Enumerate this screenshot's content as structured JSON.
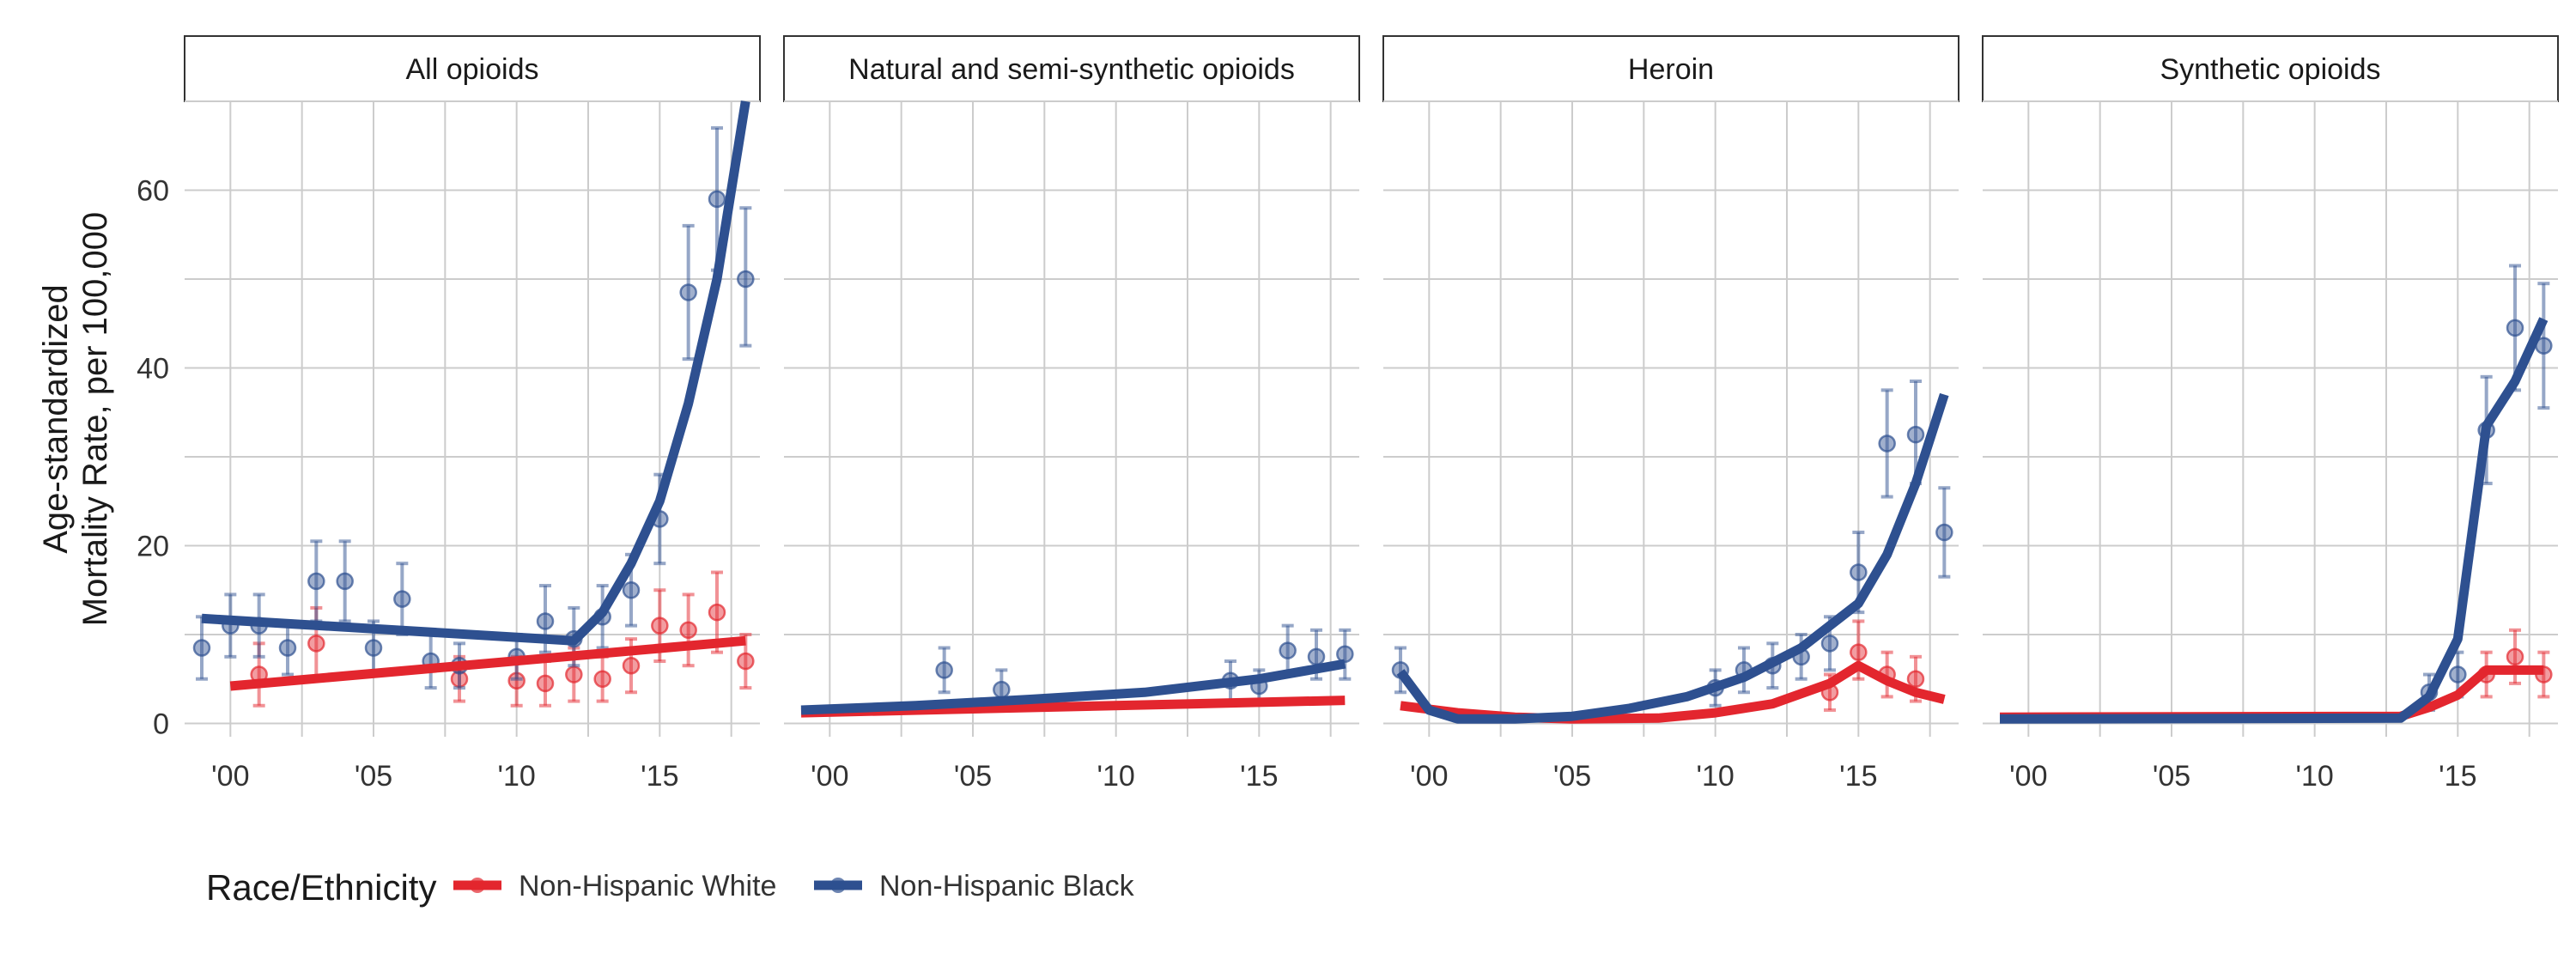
{
  "colors": {
    "white_series": "#E3262E",
    "black_series": "#2E5090",
    "grid": "#cccccc"
  },
  "chart_data": {
    "type": "line",
    "ylabel": "Age-standardized\nMortality Rate, per 100,000",
    "ylim": [
      0,
      70
    ],
    "xlim": [
      1999,
      2018
    ],
    "yticks": [
      0,
      20,
      40,
      60
    ],
    "xticks": [
      2000,
      2005,
      2010,
      2015
    ],
    "xtick_labels": [
      "'00",
      "'05",
      "'10",
      "'15"
    ],
    "grid": true,
    "legend": {
      "title": "Race/Ethnicity",
      "placement": "bottom-left",
      "entries": [
        "Non-Hispanic White",
        "Non-Hispanic Black"
      ]
    },
    "panels": [
      {
        "title": "All opioids",
        "series": [
          {
            "name": "Non-Hispanic White",
            "key": "white",
            "fit": [
              [
                2000,
                4.2
              ],
              [
                2018,
                9.3
              ]
            ],
            "points": [
              [
                2001,
                5.5,
                2.0,
                9.0
              ],
              [
                2003,
                9.0,
                5.0,
                13.0
              ],
              [
                2008,
                5.0,
                2.5,
                7.5
              ],
              [
                2010,
                4.8,
                2.0,
                7.5
              ],
              [
                2011,
                4.5,
                2.0,
                7.0
              ],
              [
                2012,
                5.5,
                2.5,
                8.5
              ],
              [
                2013,
                5.0,
                2.5,
                7.5
              ],
              [
                2014,
                6.5,
                3.5,
                9.5
              ],
              [
                2015,
                11.0,
                7.0,
                15.0
              ],
              [
                2016,
                10.5,
                6.5,
                14.5
              ],
              [
                2017,
                12.5,
                8.0,
                17.0
              ],
              [
                2018,
                7.0,
                4.0,
                10.0
              ]
            ]
          },
          {
            "name": "Non-Hispanic Black",
            "key": "black",
            "fit": [
              [
                1999,
                11.8
              ],
              [
                2012,
                9.3
              ],
              [
                2013,
                12.5
              ],
              [
                2014,
                18.0
              ],
              [
                2015,
                25.0
              ],
              [
                2016,
                36.0
              ],
              [
                2017,
                50.0
              ],
              [
                2018,
                70.0
              ]
            ],
            "points": [
              [
                1999,
                8.5,
                5.0,
                12.0
              ],
              [
                2000,
                11.0,
                7.5,
                14.5
              ],
              [
                2001,
                11.0,
                7.5,
                14.5
              ],
              [
                2002,
                8.5,
                5.5,
                11.5
              ],
              [
                2003,
                16.0,
                11.5,
                20.5
              ],
              [
                2004,
                16.0,
                11.5,
                20.5
              ],
              [
                2005,
                8.5,
                5.5,
                11.5
              ],
              [
                2006,
                14.0,
                10.0,
                18.0
              ],
              [
                2007,
                7.0,
                4.0,
                10.0
              ],
              [
                2008,
                6.5,
                4.0,
                9.0
              ],
              [
                2010,
                7.5,
                5.0,
                10.0
              ],
              [
                2011,
                11.5,
                8.0,
                15.5
              ],
              [
                2012,
                9.5,
                6.5,
                13.0
              ],
              [
                2013,
                12.0,
                8.5,
                15.5
              ],
              [
                2014,
                15.0,
                11.0,
                19.0
              ],
              [
                2015,
                23.0,
                18.0,
                28.0
              ],
              [
                2016,
                48.5,
                41.0,
                56.0
              ],
              [
                2017,
                59.0,
                51.0,
                67.0
              ],
              [
                2018,
                50.0,
                42.5,
                58.0
              ]
            ]
          }
        ]
      },
      {
        "title": "Natural and semi-synthetic opioids",
        "series": [
          {
            "name": "Non-Hispanic White",
            "key": "white",
            "fit": [
              [
                1999,
                1.2
              ],
              [
                2018,
                2.6
              ]
            ],
            "points": []
          },
          {
            "name": "Non-Hispanic Black",
            "key": "black",
            "fit": [
              [
                1999,
                1.5
              ],
              [
                2003,
                2.0
              ],
              [
                2007,
                2.7
              ],
              [
                2011,
                3.5
              ],
              [
                2015,
                5.0
              ],
              [
                2018,
                6.7
              ]
            ],
            "points": [
              [
                2004,
                6.0,
                3.5,
                8.5
              ],
              [
                2006,
                3.8,
                2.0,
                6.0
              ],
              [
                2014,
                4.8,
                2.5,
                7.0
              ],
              [
                2015,
                4.2,
                2.5,
                6.0
              ],
              [
                2016,
                8.2,
                5.5,
                11.0
              ],
              [
                2017,
                7.5,
                5.0,
                10.5
              ],
              [
                2018,
                7.8,
                5.0,
                10.5
              ]
            ]
          }
        ]
      },
      {
        "title": "Heroin",
        "series": [
          {
            "name": "Non-Hispanic White",
            "key": "white",
            "fit": [
              [
                1999,
                2.0
              ],
              [
                2001,
                1.2
              ],
              [
                2003,
                0.7
              ],
              [
                2005,
                0.5
              ],
              [
                2008,
                0.6
              ],
              [
                2010,
                1.2
              ],
              [
                2012,
                2.2
              ],
              [
                2014,
                4.5
              ],
              [
                2015,
                6.5
              ],
              [
                2016,
                4.8
              ],
              [
                2017,
                3.5
              ],
              [
                2018,
                2.7
              ]
            ],
            "points": [
              [
                2014,
                3.5,
                1.5,
                5.5
              ],
              [
                2015,
                8.0,
                5.0,
                11.5
              ],
              [
                2016,
                5.5,
                3.0,
                8.0
              ],
              [
                2017,
                5.0,
                2.5,
                7.5
              ]
            ]
          },
          {
            "name": "Non-Hispanic Black",
            "key": "black",
            "fit": [
              [
                1999,
                5.8
              ],
              [
                2000,
                1.5
              ],
              [
                2001,
                0.5
              ],
              [
                2003,
                0.5
              ],
              [
                2005,
                0.8
              ],
              [
                2007,
                1.7
              ],
              [
                2009,
                3.0
              ],
              [
                2011,
                5.2
              ],
              [
                2013,
                8.5
              ],
              [
                2015,
                13.5
              ],
              [
                2016,
                19.0
              ],
              [
                2017,
                27.0
              ],
              [
                2018,
                37.0
              ]
            ],
            "points": [
              [
                1999,
                6.0,
                3.5,
                8.5
              ],
              [
                2010,
                4.0,
                2.0,
                6.0
              ],
              [
                2011,
                6.0,
                3.5,
                8.5
              ],
              [
                2012,
                6.5,
                4.0,
                9.0
              ],
              [
                2013,
                7.5,
                5.0,
                10.0
              ],
              [
                2014,
                9.0,
                6.0,
                12.0
              ],
              [
                2015,
                17.0,
                12.5,
                21.5
              ],
              [
                2016,
                31.5,
                25.5,
                37.5
              ],
              [
                2017,
                32.5,
                27.0,
                38.5
              ],
              [
                2018,
                21.5,
                16.5,
                26.5
              ]
            ]
          }
        ]
      },
      {
        "title": "Synthetic opioids",
        "series": [
          {
            "name": "Non-Hispanic White",
            "key": "white",
            "fit": [
              [
                1999,
                0.7
              ],
              [
                2013,
                0.8
              ],
              [
                2014,
                1.8
              ],
              [
                2015,
                3.2
              ],
              [
                2016,
                6.0
              ],
              [
                2017,
                6.0
              ],
              [
                2018,
                6.0
              ]
            ],
            "points": [
              [
                2016,
                5.5,
                3.0,
                8.0
              ],
              [
                2017,
                7.5,
                4.5,
                10.5
              ],
              [
                2018,
                5.5,
                3.0,
                8.0
              ]
            ]
          },
          {
            "name": "Non-Hispanic Black",
            "key": "black",
            "fit": [
              [
                1999,
                0.5
              ],
              [
                2013,
                0.6
              ],
              [
                2014,
                3.0
              ],
              [
                2015,
                9.5
              ],
              [
                2016,
                33.5
              ],
              [
                2017,
                38.5
              ],
              [
                2018,
                45.5
              ]
            ],
            "points": [
              [
                2014,
                3.5,
                1.5,
                5.5
              ],
              [
                2015,
                5.5,
                3.0,
                8.0
              ],
              [
                2016,
                33.0,
                27.0,
                39.0
              ],
              [
                2017,
                44.5,
                37.5,
                51.5
              ],
              [
                2018,
                42.5,
                35.5,
                49.5
              ]
            ]
          }
        ]
      }
    ]
  }
}
